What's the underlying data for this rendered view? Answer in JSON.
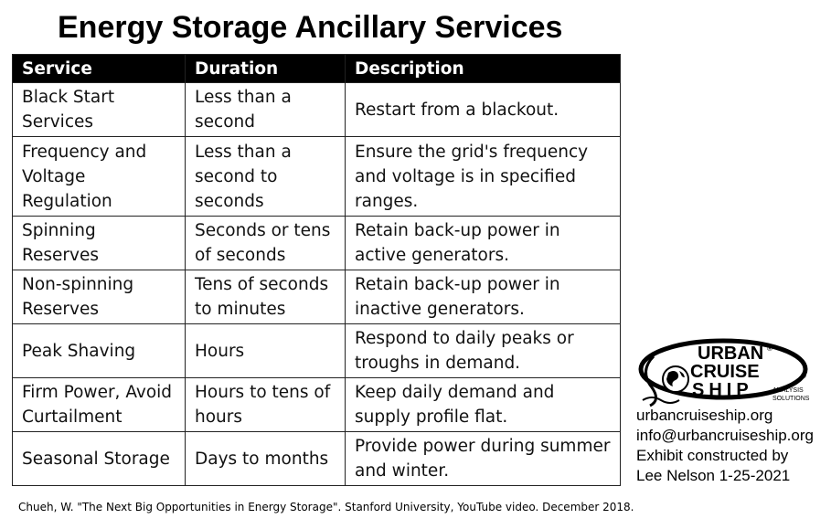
{
  "title": "Energy Storage Ancillary Services",
  "chart_data": {
    "type": "table",
    "title": "Energy Storage Ancillary Services",
    "columns": [
      "Service",
      "Duration",
      "Description"
    ],
    "rows": [
      [
        "Black Start Services",
        "Less than a second",
        "Restart from a blackout."
      ],
      [
        "Frequency and Voltage Regulation",
        "Less than a second to seconds",
        "Ensure the grid's frequency and voltage is in specified ranges."
      ],
      [
        "Spinning Reserves",
        "Seconds or tens of seconds",
        "Retain back-up power in active generators."
      ],
      [
        "Non-spinning Reserves",
        "Tens of seconds to minutes",
        "Retain back-up power in inactive generators."
      ],
      [
        "Peak Shaving",
        "Hours",
        "Respond to daily peaks or troughs in demand."
      ],
      [
        "Firm Power, Avoid Curtailment",
        "Hours to tens of hours",
        "Keep daily demand and supply profile flat."
      ],
      [
        "Seasonal Storage",
        "Days to months",
        "Provide power during summer and winter."
      ]
    ]
  },
  "logo": {
    "line1": "URBAN",
    "line2": "CRUISE",
    "line3": "SHIP",
    "tagline1": "ANALYSIS",
    "tagline2": "SOLUTIONS",
    "registered": "®",
    "copyright": "©"
  },
  "contact": {
    "website": "urbancruiseship.org",
    "email": "info@urbancruiseship.org",
    "credit": "Exhibit constructed by",
    "author_date": "Lee Nelson 1-25-2021"
  },
  "citation": "Chueh, W. \"The Next Big Opportunities in Energy Storage\". Stanford University, YouTube video. December 2018."
}
